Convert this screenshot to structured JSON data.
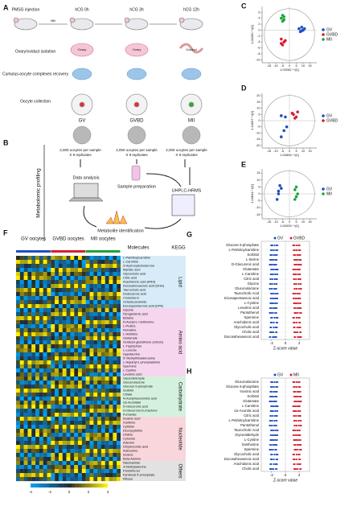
{
  "panel_labels": [
    "A",
    "B",
    "C",
    "D",
    "E",
    "F",
    "G",
    "H"
  ],
  "A": {
    "stages": [
      "PMSG injection",
      "hCG 0h",
      "hCG 3h",
      "hCG 12h"
    ],
    "interval": "48h",
    "organs": [
      "Ovary",
      "Ovary",
      "Oviduct"
    ],
    "steps": [
      "Ovary/oviduct isolation",
      "Cumulus-oocyte complexes recovery",
      "Oocyte collection"
    ],
    "oocytes": [
      "GV",
      "GVBD",
      "MII"
    ]
  },
  "B": {
    "title": "Metabolomic profiling",
    "sample_note": "2,000 oocytes per sample",
    "replicates": "X 9 replicates",
    "analysis": "Data analysis",
    "prep": "Sample preparation",
    "ms": "UHPLC-HRMS",
    "ident": "Metabolite identification"
  },
  "C": {
    "xlabel": "1.00282 * t[1]",
    "ylabel": "1.00282 * t[2]",
    "xlim": [
      -20,
      20
    ],
    "ylim": [
      -11,
      8
    ],
    "xticks": [
      -15,
      -10,
      -5,
      0,
      5,
      10,
      15
    ],
    "yticks": [
      6,
      4,
      2,
      0,
      -2,
      -4,
      -6,
      -8,
      -10
    ],
    "groups": [
      {
        "name": "GV",
        "color": "#1f4fc4",
        "points": [
          [
            7,
            0.5
          ],
          [
            9,
            1
          ],
          [
            10,
            0
          ],
          [
            8,
            -0.5
          ],
          [
            11,
            0.5
          ],
          [
            9,
            -0.2
          ]
        ]
      },
      {
        "name": "GVBD",
        "color": "#d62030",
        "points": [
          [
            -6,
            -3
          ],
          [
            -4,
            -4
          ],
          [
            -5,
            -5
          ],
          [
            -3,
            -3.5
          ],
          [
            -6,
            -4.5
          ]
        ]
      },
      {
        "name": "MII",
        "color": "#1aa63a",
        "points": [
          [
            -6,
            4
          ],
          [
            -5,
            5
          ],
          [
            -4,
            3.5
          ],
          [
            -5,
            3
          ],
          [
            -4,
            4.5
          ]
        ]
      }
    ]
  },
  "D": {
    "xlabel": "1.00835 * t[1]",
    "ylabel": "1.10097 * t[2]",
    "xlim": [
      -20,
      20
    ],
    "ylim": [
      -22,
      22
    ],
    "xticks": [
      -15,
      -10,
      -5,
      0,
      5,
      10,
      15
    ],
    "yticks": [
      20,
      15,
      10,
      5,
      0,
      -5,
      -10,
      -15,
      -20
    ],
    "groups": [
      {
        "name": "GV",
        "color": "#1f4fc4",
        "points": [
          [
            -3,
            3
          ],
          [
            -6,
            4
          ],
          [
            -4,
            -8
          ],
          [
            -6,
            -13
          ],
          [
            -2,
            -5
          ]
        ]
      },
      {
        "name": "GVBD",
        "color": "#d62030",
        "points": [
          [
            3,
            5
          ],
          [
            5,
            3
          ],
          [
            2,
            6
          ],
          [
            6,
            7
          ],
          [
            4,
            2
          ]
        ]
      }
    ]
  },
  "E": {
    "xlabel": "1.00025 * t[1]",
    "ylabel": "1.03844 * t[2]",
    "xlim": [
      -20,
      20
    ],
    "ylim": [
      -18,
      18
    ],
    "xticks": [
      -15,
      -10,
      -5,
      0,
      5,
      10,
      15
    ],
    "yticks": [
      15,
      10,
      5,
      0,
      -5,
      -10,
      -15
    ],
    "groups": [
      {
        "name": "GV",
        "color": "#1f4fc4",
        "points": [
          [
            -8,
            2
          ],
          [
            -6,
            4
          ],
          [
            -9,
            -4
          ],
          [
            -7,
            6
          ],
          [
            -8,
            0
          ]
        ]
      },
      {
        "name": "MII",
        "color": "#1aa63a",
        "points": [
          [
            4,
            3
          ],
          [
            5,
            -2
          ],
          [
            6,
            0
          ],
          [
            4,
            -4
          ],
          [
            5,
            5
          ]
        ]
      }
    ]
  },
  "F": {
    "groups": [
      "GV oocytes",
      "GVBD oocytes",
      "MII oocytes"
    ],
    "molecules_header": "Molecules",
    "kegg_header": "KEGG",
    "colorbar_ticks": [
      -4,
      -2,
      0,
      2,
      4
    ],
    "classes": [
      {
        "name": "Lipid",
        "molecules": [
          "L-Palmitoylcarnitine",
          "L-Carnitine",
          "3-Hydroxytestosterone",
          "Myristic acid",
          "Glycocholic acid",
          "Citric acid",
          "Arachidonic acid (ARA)",
          "Docosahexaenoic acid (DHA)",
          "Taurocholic acid",
          "Dodecanoic acid",
          "Cholesterol",
          "Octadecanamide",
          "Eicosapentaenoic acid (EPA)"
        ]
      },
      {
        "name": "Amino acid",
        "molecules": [
          "Glycine",
          "Pyroglutamic acid",
          "Betaine",
          "N-Acetyl-L-methionine",
          "L-Proline",
          "Norvaline",
          "L-Histidine",
          "Glutamate",
          "Oxidized glutathione (GSSG)",
          "L-Tryptophan",
          "L-Leucine",
          "Hypotaurine",
          "5'-Methylthioadenosine",
          "L-Aspartyl-L-phenylalanine",
          "Spermine",
          "L-Cystine",
          "Levulinic acid"
        ]
      },
      {
        "name": "Carbohydrate",
        "molecules": [
          "Glyceraldehyde",
          "Gluconolactone",
          "Glucose 6-phosphate",
          "Sorbitol",
          "Citrate",
          "N-Acetylneuraminic acid",
          "cis-Aconitate",
          "D-Glucuronic acid",
          "D-Glucurono-6,3-lactone",
          "Fumarate"
        ]
      },
      {
        "name": "Nucleotide",
        "molecules": [
          "Inosinic acid",
          "Xanthine",
          "Cytidine",
          "Deoxycytidine",
          "Uridine",
          "Cytosine",
          "Adenine",
          "Dihydroorotic acid",
          "Adenosine",
          "Inosine",
          "Beta-Alanine"
        ]
      },
      {
        "name": "Others",
        "molecules": [
          "Niacinamide",
          "3-Methyladenine",
          "Pantothenol",
          "Pyridoxal 5'-phosphate",
          "Ribose"
        ]
      }
    ]
  },
  "G": {
    "legend": [
      {
        "name": "GV",
        "color": "#1f4fc4"
      },
      {
        "name": "GVBD",
        "color": "#d62030"
      }
    ],
    "xlabel": "Z-score value",
    "xlim": [
      -3.5,
      3.5
    ],
    "xticks": [
      -2,
      0,
      2
    ],
    "molecules": [
      "Glucose 6-phosphate",
      "L-Palmitoylcarnitine",
      "Sorbitol",
      "L-Serine",
      "D-Glucuronic acid",
      "Glutamate",
      "L-Carnitine",
      "Citric acid",
      "Glycine",
      "Gluconolactone",
      "Taurocholic Acid",
      "Eicosapentaenoic acid",
      "L-Cystine",
      "Levulinic acid",
      "Pantothenol",
      "Spermine",
      "Arachidonic acid",
      "Glycocholic acid",
      "Cholic acid",
      "Docosahexaenoic acid"
    ]
  },
  "H": {
    "legend": [
      {
        "name": "GV",
        "color": "#1f4fc4"
      },
      {
        "name": "MII",
        "color": "#d62030"
      }
    ],
    "xlabel": "Z-score value",
    "xlim": [
      -3.5,
      3.5
    ],
    "xticks": [
      -2,
      0,
      2
    ],
    "molecules": [
      "Gluconolactone",
      "Glucose 6-phosphate",
      "Inosinic acid",
      "Sorbitol",
      "Glutamate",
      "L-Carnitine",
      "cis-Aconitic acid",
      "Citric acid",
      "L-Palmitoylcarnitine",
      "Pantothenol",
      "Taurocholic Acid",
      "Glyceraldehyde",
      "L-Cystine",
      "Xanthosine",
      "Spermine",
      "Glycocholic acid",
      "Docosahexaenoic acid",
      "Arachidonic acid",
      "Cholic acid"
    ]
  }
}
